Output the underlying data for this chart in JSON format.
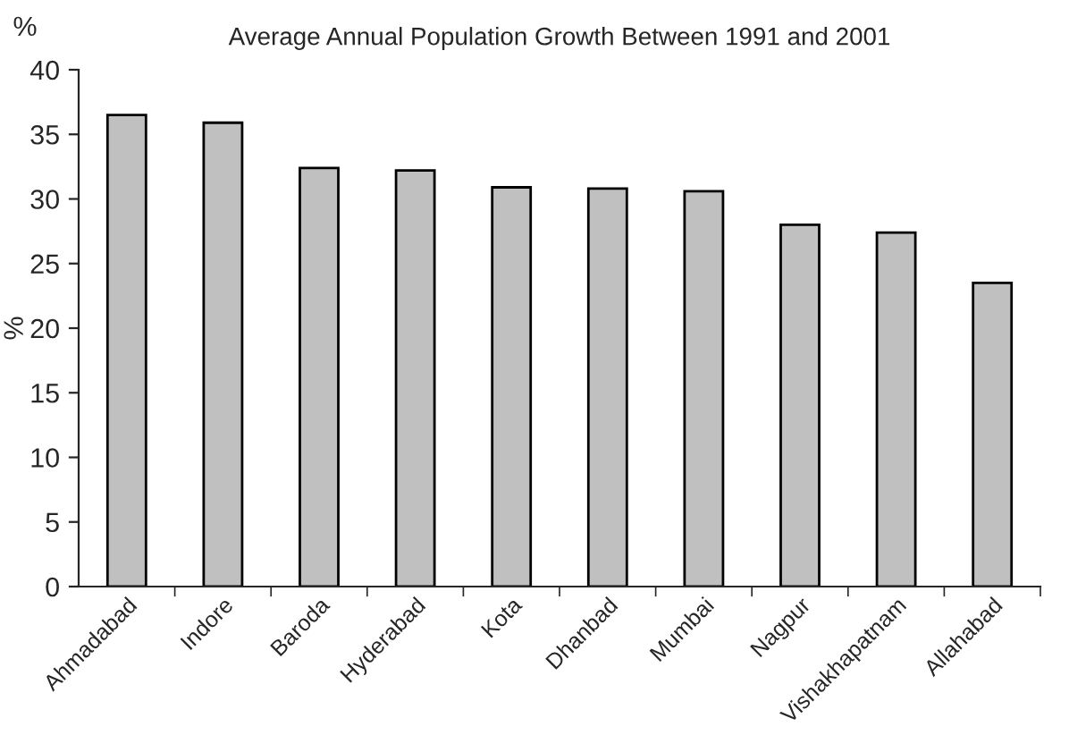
{
  "chart_data": {
    "type": "bar",
    "title": "Average Annual Population Growth Between 1991 and 2001",
    "ylabel": "%",
    "annotations": [
      "%"
    ],
    "categories": [
      "Ahmadabad",
      "Indore",
      "Baroda",
      "Hyderabad",
      "Kota",
      "Dhanbad",
      "Mumbai",
      "Nagpur",
      "Vishakhapatnam",
      "Allahabad"
    ],
    "values": [
      36.5,
      35.9,
      32.4,
      32.2,
      30.9,
      30.8,
      30.6,
      28.0,
      27.4,
      23.5
    ],
    "color": "#c0c0c0",
    "ylim": [
      0,
      40
    ],
    "yticks": [
      0,
      5,
      10,
      15,
      20,
      25,
      30,
      35,
      40
    ],
    "grid": false,
    "legend": false
  }
}
